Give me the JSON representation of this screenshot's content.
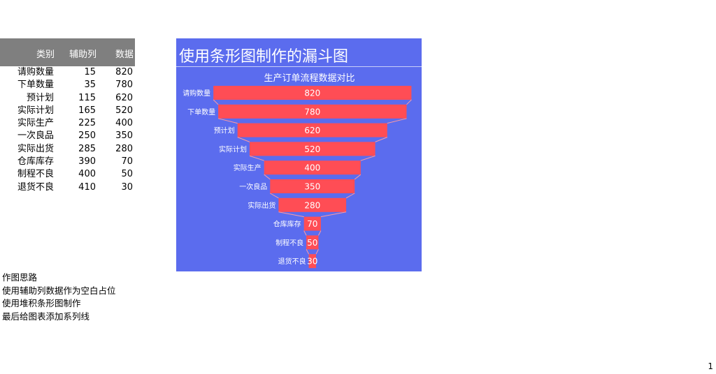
{
  "table": {
    "headers": {
      "category": "类别",
      "aux": "辅助列",
      "value": "数据"
    },
    "rows": [
      {
        "category": "请购数量",
        "aux": "15",
        "value": "820"
      },
      {
        "category": "下单数量",
        "aux": "35",
        "value": "780"
      },
      {
        "category": "预计划",
        "aux": "115",
        "value": "620"
      },
      {
        "category": "实际计划",
        "aux": "165",
        "value": "520"
      },
      {
        "category": "实际生产",
        "aux": "225",
        "value": "400"
      },
      {
        "category": "一次良品",
        "aux": "250",
        "value": "350"
      },
      {
        "category": "实际出货",
        "aux": "285",
        "value": "280"
      },
      {
        "category": "仓库库存",
        "aux": "390",
        "value": "70"
      },
      {
        "category": "制程不良",
        "aux": "400",
        "value": "50"
      },
      {
        "category": "退货不良",
        "aux": "410",
        "value": "30"
      }
    ]
  },
  "chart_data": {
    "type": "bar",
    "title": "使用条形图制作的漏斗图",
    "subtitle": "生产订单流程数据对比",
    "categories": [
      "请购数量",
      "下单数量",
      "预计划",
      "实际计划",
      "实际生产",
      "一次良品",
      "实际出货",
      "仓库库存",
      "制程不良",
      "退货不良"
    ],
    "series": [
      {
        "values": [
          15,
          35,
          115,
          165,
          225,
          250,
          285,
          390,
          400,
          410
        ]
      },
      {
        "values": [
          820,
          780,
          620,
          520,
          400,
          350,
          280,
          70,
          50,
          30
        ]
      }
    ],
    "stacked": true,
    "xlim": [
      0,
      860
    ],
    "bar_color": "#ff4d55",
    "background_color": "#5b6cee",
    "grid": false,
    "legend": false
  },
  "notes": {
    "heading": "作图思路",
    "lines": [
      "使用辅助列数据作为空白占位",
      "使用堆积条形图制作",
      "最后给图表添加系列线"
    ]
  },
  "page_number": "1"
}
